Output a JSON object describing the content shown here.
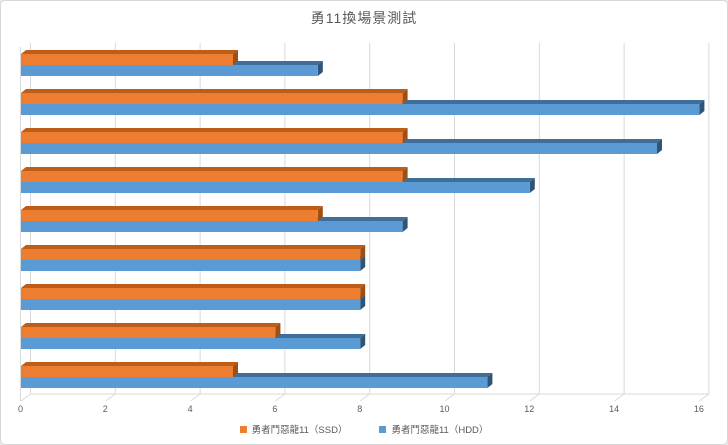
{
  "title": "勇11換場景測試",
  "legend": [
    {
      "label": "勇者鬥惡龍11（SSD）",
      "color": "#ED7D31"
    },
    {
      "label": "勇者鬥惡龍11（HDD）",
      "color": "#5B9BD5"
    }
  ],
  "colors": {
    "ssd_front": "#ED7D31",
    "ssd_top": "#BE5D18",
    "ssd_end": "#A04F12",
    "hdd_front": "#5B9BD5",
    "hdd_top": "#3F6E99",
    "hdd_end": "#2F5475",
    "gridline": "#D9D9D9",
    "axis_text": "#595959",
    "title_text": "#595959"
  },
  "chart_data": {
    "type": "bar",
    "orientation": "horizontal",
    "style": "3d-clustered",
    "title": "勇11換場景測試",
    "categories": [
      "",
      "",
      "",
      "",
      "",
      "",
      "",
      "",
      ""
    ],
    "series": [
      {
        "name": "勇者鬥惡龍11（SSD）",
        "color": "#ED7D31",
        "values": [
          5,
          9,
          9,
          9,
          7,
          8,
          8,
          6,
          5
        ]
      },
      {
        "name": "勇者鬥惡龍11（HDD）",
        "color": "#5B9BD5",
        "values": [
          7,
          16,
          15,
          12,
          9,
          8,
          8,
          8,
          11
        ]
      }
    ],
    "value_order": "top-to-bottom",
    "xlabel": "",
    "ylabel": "",
    "xlim": [
      0,
      16
    ],
    "x_ticks": [
      0,
      2,
      4,
      6,
      8,
      10,
      12,
      14,
      16
    ],
    "grid": true,
    "y_category_labels_visible": false,
    "legend_position": "bottom-center"
  }
}
